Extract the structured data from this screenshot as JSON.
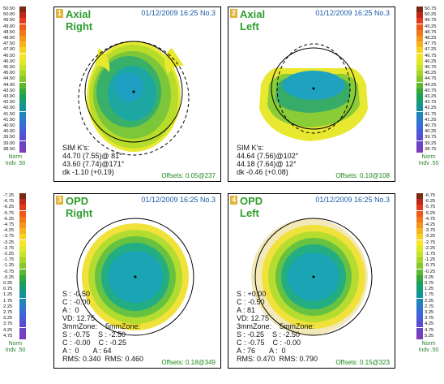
{
  "panels": [
    {
      "num": "1",
      "title_line1": "Axial",
      "title_line2": "Right",
      "datetime": "01/12/2009 16:25 No.3",
      "info_lines": [
        "SIM K's:",
        "44.70 (7.55)@ 81°",
        "43.60 (7.74)@171°",
        "dk -1.10 (+0.19)"
      ],
      "offsets": "Offsets: 0.05@237"
    },
    {
      "num": "2",
      "title_line1": "Axial",
      "title_line2": "Left",
      "datetime": "01/12/2009 16:25 No.3",
      "info_lines": [
        "SIM K's:",
        "44.64 (7.56)@102°",
        "44.18 (7.64)@ 12°",
        "dk -0.46 (+0.08)"
      ],
      "offsets": "Offsets: 0.10@108"
    },
    {
      "num": "3",
      "title_line1": "OPD",
      "title_line2": "Right",
      "datetime": "01/12/2009 16:25 No.3",
      "info_lines": [
        "S : -0.50",
        "C : -0.00",
        "A :  0",
        "VD: 12.75",
        "3mmZone:    5mmZone:",
        "S : -0.75    S : -2.50",
        "C : -0.00    C : -0.25",
        "A :  0       A : 64",
        "RMS: 0.340  RMS: 0.460"
      ],
      "offsets": "Offsets: 0.18@349"
    },
    {
      "num": "4",
      "title_line1": "OPD",
      "title_line2": "Left",
      "datetime": "01/12/2009 16:25 No.3",
      "info_lines": [
        "S : +0.00",
        "C : -0.50",
        "A : 81",
        "VD: 12.75",
        "3mmZone:    5mmZone:",
        "S : -0.25    S : -2.50",
        "C : -0.75    C : -0.00",
        "A : 76       A :  0",
        "RMS: 0.470  RMS: 0.790"
      ],
      "offsets": "Offsets: 0.15@323"
    }
  ],
  "scales": {
    "axial_left": [
      "50.50",
      "50.00",
      "49.50",
      "49.00",
      "48.50",
      "48.00",
      "47.50",
      "47.00",
      "46.50",
      "46.00",
      "45.50",
      "45.00",
      "44.50",
      "44.00",
      "43.50",
      "43.00",
      "42.50",
      "42.00",
      "41.50",
      "41.00",
      "40.50",
      "40.00",
      "39.50",
      "39.00",
      "38.50"
    ],
    "axial_right": [
      "50.75",
      "50.25",
      "49.75",
      "49.25",
      "48.75",
      "48.25",
      "47.75",
      "47.25",
      "46.75",
      "46.25",
      "45.75",
      "45.25",
      "44.75",
      "44.25",
      "43.75",
      "43.25",
      "42.75",
      "42.25",
      "41.75",
      "41.25",
      "40.75",
      "40.25",
      "39.75",
      "39.25",
      "38.75"
    ],
    "opd_left": [
      "-7.25",
      "-6.75",
      "-6.25",
      "-5.75",
      "-5.25",
      "-4.75",
      "-4.25",
      "-3.75",
      "-3.25",
      "-2.75",
      "-2.25",
      "-1.75",
      "-1.25",
      "-0.75",
      "-0.25",
      "0.25",
      "0.75",
      "1.25",
      "1.75",
      "2.25",
      "2.75",
      "3.25",
      "3.75",
      "4.25",
      "4.75"
    ],
    "opd_right": [
      "-6.75",
      "-6.25",
      "-5.75",
      "-5.25",
      "-4.75",
      "-4.25",
      "-3.75",
      "-3.25",
      "-2.75",
      "-2.25",
      "-1.75",
      "-1.25",
      "-0.75",
      "-0.25",
      "0.25",
      "0.75",
      "1.25",
      "1.75",
      "2.25",
      "2.75",
      "3.25",
      "3.75",
      "4.25",
      "4.75",
      "5.25"
    ],
    "footer_line1": "Norm",
    "footer_line2": "Indv .50"
  },
  "colors": {
    "scale": [
      "#7a2a10",
      "#c0281a",
      "#e23a1e",
      "#ee5a1a",
      "#f0781c",
      "#f2961e",
      "#f6b420",
      "#f8d020",
      "#f4e42a",
      "#e0e82e",
      "#c8e02e",
      "#a8d42c",
      "#86c82c",
      "#5cb82e",
      "#34a83a",
      "#1aa05a",
      "#169a7c",
      "#14929c",
      "#1e86b8",
      "#2c78cc",
      "#3a6ad6",
      "#4a5ad8",
      "#5a4cd0",
      "#6a44c6",
      "#7a3ebc"
    ]
  }
}
